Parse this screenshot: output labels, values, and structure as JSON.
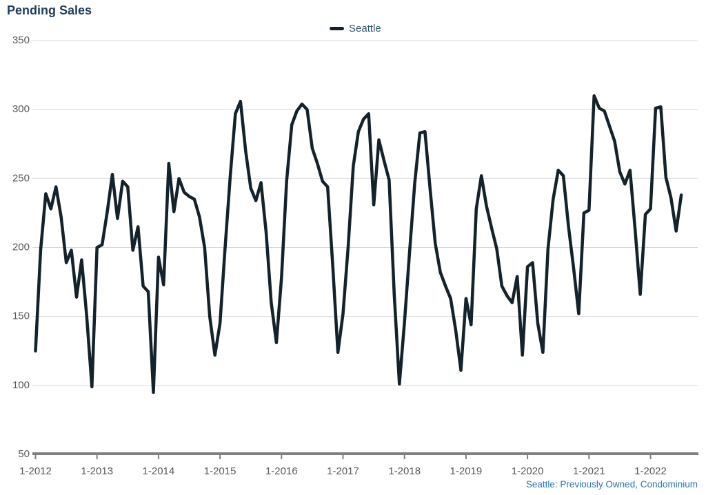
{
  "footnote": "Seattle: Previously Owned, Condominium",
  "colors": {
    "title": "#1E3D5C",
    "legend_text": "#2F566B",
    "axis_labels": "#595959",
    "gridline": "#D9D9D9",
    "axis_line": "#808080",
    "series_line": "#13222B",
    "footnote_text": "#2E74B5",
    "background": "#FFFFFF"
  },
  "chart_data": {
    "type": "line",
    "title": "Pending Sales",
    "subtitle": "",
    "xlabel": "",
    "ylabel": "",
    "x_start": "2012-01",
    "x_end": "2022-07",
    "frequency": "monthly",
    "x_tick_labels": [
      "1-2012",
      "1-2013",
      "1-2014",
      "1-2015",
      "1-2016",
      "1-2017",
      "1-2018",
      "1-2019",
      "1-2020",
      "1-2021",
      "1-2022"
    ],
    "ylim": [
      50,
      350
    ],
    "yticks": [
      50,
      100,
      150,
      200,
      250,
      300,
      350
    ],
    "grid": "horizontal-only",
    "legend_position": "top-center",
    "footnote": "Seattle: Previously Owned, Condominium",
    "series": [
      {
        "name": "Seattle",
        "color": "#13222B",
        "values": [
          125,
          198,
          239,
          228,
          244,
          222,
          189,
          198,
          164,
          191,
          150,
          99,
          200,
          202,
          226,
          253,
          221,
          248,
          244,
          198,
          215,
          172,
          168,
          95,
          193,
          173,
          261,
          226,
          250,
          240,
          237,
          235,
          222,
          200,
          150,
          122,
          145,
          200,
          252,
          297,
          306,
          270,
          243,
          234,
          247,
          211,
          160,
          131,
          178,
          248,
          289,
          299,
          304,
          300,
          272,
          261,
          248,
          244,
          187,
          124,
          152,
          200,
          259,
          284,
          293,
          297,
          231,
          278,
          263,
          249,
          166,
          101,
          146,
          197,
          247,
          283,
          284,
          242,
          203,
          182,
          172,
          163,
          140,
          111,
          163,
          144,
          228,
          252,
          230,
          214,
          199,
          172,
          165,
          160,
          179,
          122,
          186,
          189,
          145,
          124,
          199,
          235,
          256,
          252,
          215,
          185,
          152,
          225,
          227,
          310,
          301,
          299,
          288,
          277,
          255,
          246,
          256,
          213,
          166,
          224,
          228,
          301,
          302,
          251,
          236,
          212,
          238
        ]
      }
    ]
  }
}
